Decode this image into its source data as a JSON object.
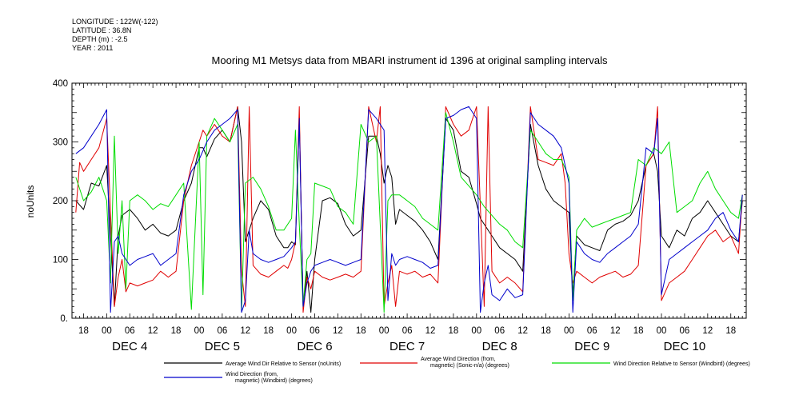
{
  "header": {
    "longitude": "LONGITUDE : 122W(-122)",
    "latitude": "LATITUDE : 36.8N",
    "depth": "DEPTH (m) : -2.5",
    "year": "YEAR : 2011"
  },
  "chart_data": {
    "type": "line",
    "title": "Mooring M1 Metsys data from MBARI instrument id 1396 at original sampling intervals",
    "ylabel": "noUnits",
    "ylim": [
      0,
      400
    ],
    "yticks": [
      "0.",
      "100",
      "200",
      "300",
      "400"
    ],
    "xlim_hours": [
      -9,
      166
    ],
    "hour_tick_labels": [
      "00",
      "06",
      "12",
      "18"
    ],
    "days": [
      "DEC  4",
      "DEC  5",
      "DEC  6",
      "DEC  7",
      "DEC  8",
      "DEC  9",
      "DEC 10"
    ],
    "x_units": "hours from 2011-12-04 00:00",
    "series": [
      {
        "name": "Average Wind Dir Relative to Sensor (noUnits)",
        "color": "#000000",
        "x": [
          -8,
          -6,
          -4,
          -2,
          0,
          2,
          3,
          4,
          6,
          8,
          10,
          12,
          14,
          16,
          18,
          20,
          22,
          24,
          25,
          26,
          28,
          30,
          32,
          34,
          35,
          36,
          38,
          40,
          42,
          44,
          46,
          47,
          48,
          49,
          50,
          51,
          52,
          53,
          54,
          56,
          58,
          60,
          62,
          64,
          66,
          68,
          70,
          71,
          72,
          73,
          74,
          75,
          76,
          78,
          80,
          82,
          84,
          86,
          88,
          90,
          92,
          94,
          96,
          97,
          98,
          100,
          102,
          104,
          106,
          108,
          110,
          112,
          114,
          116,
          118,
          120,
          121,
          122,
          124,
          126,
          128,
          130,
          132,
          134,
          136,
          138,
          140,
          142,
          143,
          144,
          146,
          148,
          150,
          152,
          154,
          156,
          158,
          160,
          162,
          164,
          165
        ],
        "values": [
          200,
          185,
          230,
          225,
          260,
          20,
          140,
          175,
          185,
          170,
          150,
          160,
          145,
          140,
          150,
          200,
          230,
          290,
          290,
          275,
          305,
          320,
          300,
          360,
          300,
          130,
          170,
          200,
          185,
          140,
          120,
          120,
          130,
          125,
          340,
          20,
          80,
          10,
          100,
          200,
          205,
          195,
          160,
          140,
          150,
          310,
          310,
          280,
          230,
          260,
          240,
          160,
          185,
          175,
          165,
          150,
          130,
          100,
          340,
          320,
          250,
          240,
          195,
          170,
          160,
          140,
          120,
          110,
          100,
          80,
          330,
          260,
          220,
          200,
          190,
          180,
          40,
          140,
          125,
          120,
          115,
          150,
          160,
          165,
          175,
          200,
          260,
          280,
          250,
          140,
          120,
          150,
          140,
          170,
          180,
          200,
          180,
          160,
          140,
          130,
          200
        ]
      },
      {
        "name": "Average Wind Direction (from, magnetic) (Sonic-n/a) (degrees)",
        "color": "#e00000",
        "x": [
          -8,
          -7,
          -6,
          -4,
          -2,
          0,
          2,
          3,
          4,
          5,
          6,
          8,
          10,
          12,
          14,
          16,
          18,
          20,
          22,
          24,
          25,
          26,
          28,
          30,
          32,
          34,
          35,
          36,
          37,
          38,
          40,
          42,
          44,
          46,
          47,
          48,
          49,
          50,
          51,
          52,
          53,
          54,
          56,
          58,
          60,
          62,
          64,
          66,
          68,
          70,
          71,
          72,
          73,
          74,
          75,
          76,
          78,
          80,
          82,
          84,
          86,
          88,
          90,
          92,
          94,
          96,
          98,
          99,
          100,
          102,
          104,
          106,
          108,
          110,
          112,
          114,
          116,
          118,
          119,
          120,
          121,
          122,
          124,
          126,
          128,
          130,
          132,
          134,
          136,
          138,
          140,
          142,
          143,
          144,
          146,
          148,
          150,
          152,
          154,
          156,
          158,
          160,
          162,
          164,
          165
        ],
        "values": [
          180,
          265,
          250,
          270,
          290,
          340,
          20,
          70,
          100,
          45,
          60,
          55,
          60,
          65,
          80,
          70,
          80,
          200,
          260,
          300,
          320,
          310,
          330,
          310,
          300,
          360,
          80,
          20,
          360,
          90,
          75,
          70,
          80,
          90,
          85,
          100,
          130,
          360,
          10,
          70,
          50,
          80,
          70,
          65,
          70,
          75,
          70,
          80,
          360,
          300,
          360,
          20,
          60,
          90,
          20,
          80,
          75,
          80,
          70,
          75,
          60,
          360,
          330,
          310,
          320,
          360,
          20,
          360,
          80,
          60,
          70,
          60,
          45,
          360,
          270,
          265,
          260,
          280,
          230,
          110,
          60,
          80,
          70,
          60,
          70,
          75,
          80,
          70,
          75,
          90,
          260,
          280,
          360,
          30,
          60,
          70,
          80,
          100,
          120,
          140,
          150,
          130,
          140,
          110,
          210
        ]
      },
      {
        "name": "Wind Direction Relative to Sensor (Windbird) (degrees)",
        "color": "#00dd00",
        "x": [
          -8,
          -6,
          -4,
          -2,
          0,
          1,
          2,
          3,
          4,
          5,
          6,
          8,
          10,
          12,
          14,
          16,
          18,
          20,
          22,
          24,
          25,
          26,
          28,
          30,
          32,
          34,
          35,
          36,
          38,
          40,
          42,
          44,
          46,
          48,
          49,
          50,
          51,
          52,
          53,
          54,
          56,
          58,
          60,
          62,
          64,
          66,
          68,
          70,
          72,
          73,
          74,
          76,
          78,
          80,
          82,
          84,
          86,
          88,
          90,
          92,
          94,
          96,
          98,
          100,
          102,
          104,
          106,
          108,
          110,
          112,
          114,
          116,
          118,
          120,
          121,
          122,
          124,
          126,
          128,
          130,
          132,
          134,
          136,
          138,
          140,
          142,
          144,
          146,
          148,
          150,
          152,
          154,
          156,
          158,
          160,
          162,
          164,
          165
        ],
        "values": [
          240,
          200,
          215,
          240,
          200,
          60,
          310,
          110,
          200,
          50,
          200,
          210,
          200,
          185,
          195,
          190,
          210,
          230,
          15,
          300,
          40,
          310,
          340,
          320,
          300,
          330,
          10,
          230,
          240,
          220,
          190,
          150,
          150,
          170,
          320,
          160,
          20,
          100,
          110,
          230,
          225,
          220,
          190,
          180,
          160,
          330,
          300,
          310,
          10,
          200,
          210,
          210,
          200,
          190,
          170,
          160,
          150,
          350,
          300,
          240,
          225,
          210,
          190,
          175,
          160,
          150,
          130,
          120,
          320,
          300,
          280,
          270,
          270,
          240,
          30,
          150,
          170,
          155,
          160,
          165,
          170,
          175,
          180,
          270,
          260,
          290,
          280,
          300,
          180,
          190,
          200,
          230,
          250,
          220,
          200,
          180,
          170,
          210
        ]
      },
      {
        "name": "Wind Direction (from, magnetic) (Windbird) (degrees)",
        "color": "#0000cc",
        "x": [
          -8,
          -6,
          -4,
          -2,
          0,
          1,
          2,
          3,
          4,
          6,
          8,
          10,
          12,
          14,
          16,
          18,
          20,
          22,
          24,
          26,
          28,
          30,
          32,
          34,
          35,
          36,
          37,
          38,
          40,
          42,
          44,
          46,
          48,
          49,
          50,
          51,
          52,
          53,
          54,
          56,
          58,
          60,
          62,
          64,
          66,
          68,
          70,
          72,
          73,
          74,
          75,
          76,
          78,
          80,
          82,
          84,
          86,
          88,
          90,
          92,
          94,
          96,
          97,
          98,
          99,
          100,
          102,
          104,
          106,
          108,
          110,
          112,
          114,
          116,
          118,
          120,
          121,
          122,
          124,
          126,
          128,
          130,
          132,
          134,
          136,
          138,
          140,
          142,
          143,
          144,
          146,
          148,
          150,
          152,
          154,
          156,
          158,
          160,
          162,
          164,
          165
        ],
        "values": [
          280,
          290,
          310,
          330,
          355,
          10,
          130,
          140,
          110,
          90,
          100,
          105,
          110,
          90,
          100,
          110,
          210,
          250,
          270,
          300,
          320,
          330,
          340,
          355,
          10,
          30,
          150,
          110,
          100,
          95,
          100,
          105,
          120,
          130,
          340,
          20,
          60,
          80,
          90,
          95,
          100,
          95,
          90,
          95,
          100,
          355,
          340,
          320,
          30,
          110,
          90,
          100,
          105,
          100,
          95,
          85,
          90,
          340,
          345,
          355,
          360,
          340,
          10,
          60,
          90,
          40,
          30,
          50,
          35,
          40,
          350,
          330,
          320,
          310,
          290,
          230,
          10,
          130,
          110,
          100,
          95,
          110,
          120,
          130,
          140,
          160,
          290,
          280,
          340,
          40,
          100,
          110,
          120,
          130,
          140,
          150,
          170,
          180,
          150,
          130,
          210
        ]
      }
    ]
  }
}
